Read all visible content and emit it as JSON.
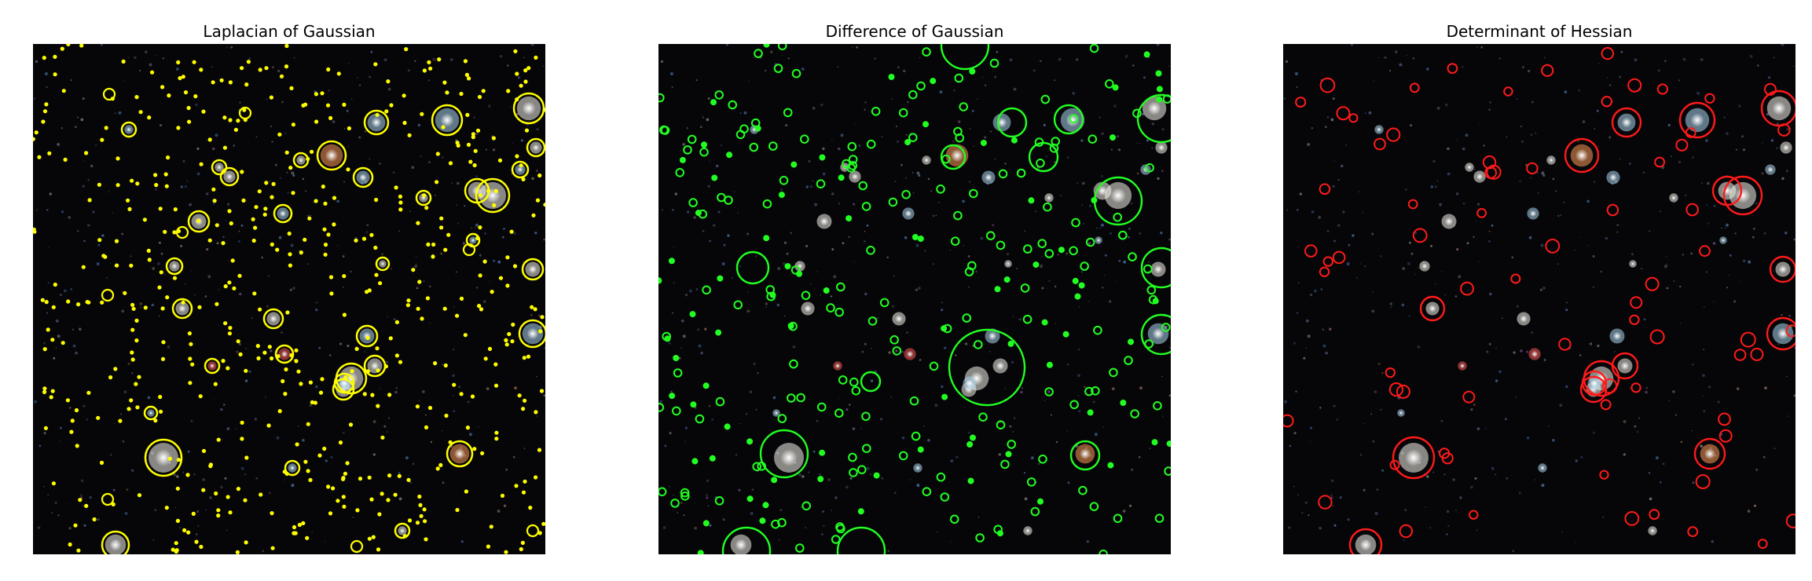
{
  "panels": [
    {
      "title": "Laplacian of Gaussian",
      "marker_color": "#ffff00",
      "seed": 11
    },
    {
      "title": "Difference of Gaussian",
      "marker_color": "#22ff22",
      "seed": 27
    },
    {
      "title": "Determinant of Hessian",
      "marker_color": "#ff1a1a",
      "seed": 53
    }
  ],
  "colors": {
    "background": "#060608",
    "galaxy_white": "#f4f2ea",
    "galaxy_blue": "#a9d6ee",
    "galaxy_orange": "#ff9a5a",
    "galaxy_red": "#ff5a5a"
  }
}
